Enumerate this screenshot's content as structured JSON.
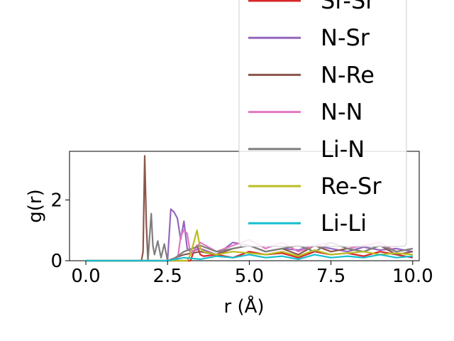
{
  "chart_data": {
    "type": "line",
    "title": "",
    "xlabel": "r (Å)",
    "ylabel": "g(r)",
    "xlim": [
      -0.5,
      10.2
    ],
    "ylim": [
      0,
      3.6
    ],
    "xticks": [
      "0.0",
      "2.5",
      "5.0",
      "7.5",
      "10.0"
    ],
    "xtick_values": [
      0,
      2.5,
      5,
      7.5,
      10
    ],
    "yticks": [
      "0",
      "2"
    ],
    "ytick_values": [
      0,
      2
    ],
    "grid": false,
    "legend_position": "upper-right",
    "series": [
      {
        "name": "Sr-Sr",
        "color": "#d62728",
        "x": [
          0,
          1.7,
          1.8,
          3.2,
          3.3,
          3.4,
          3.5,
          3.6,
          4.0,
          4.5,
          5.0,
          5.5,
          6.0,
          6.5,
          7.0,
          7.5,
          8.0,
          8.5,
          9.0,
          9.5,
          10.0
        ],
        "y": [
          0,
          0,
          0,
          0,
          0.3,
          0.5,
          0.2,
          0.15,
          0.2,
          0.1,
          0.3,
          0.2,
          0.25,
          0.1,
          0.3,
          0.2,
          0.25,
          0.15,
          0.3,
          0.2,
          0.1
        ]
      },
      {
        "name": "N-Sr",
        "color": "#9467bd",
        "x": [
          0,
          2.4,
          2.5,
          2.6,
          2.7,
          2.8,
          2.9,
          3.0,
          3.1,
          3.2,
          3.5,
          4.0,
          4.5,
          5.0,
          5.5,
          6.0,
          6.5,
          7.0,
          7.5,
          8.0,
          8.5,
          9.0,
          9.5,
          10.0
        ],
        "y": [
          0,
          0,
          0,
          1.7,
          1.6,
          1.4,
          0.7,
          1.3,
          0.4,
          0.3,
          0.4,
          0.2,
          0.6,
          0.5,
          0.3,
          0.4,
          0.35,
          0.5,
          0.4,
          0.3,
          0.45,
          0.35,
          0.4,
          0.3
        ]
      },
      {
        "name": "N-Re",
        "color": "#8c564b",
        "x": [
          0,
          1.7,
          1.75,
          1.8,
          1.85,
          1.9,
          2.0,
          2.5,
          3.0,
          3.5,
          4.0,
          4.5,
          5.0,
          5.5,
          6.0,
          6.5,
          7.0,
          7.5,
          8.0,
          8.5,
          9.0,
          9.5,
          10.0
        ],
        "y": [
          0,
          0,
          0.3,
          3.45,
          1.2,
          0,
          0,
          0,
          0.2,
          0.3,
          0.2,
          0.4,
          0.5,
          0.3,
          0.4,
          0.2,
          0.5,
          0.3,
          0.4,
          0.3,
          0.5,
          0.2,
          0.3
        ]
      },
      {
        "name": "N-N",
        "color": "#e377c2",
        "x": [
          0,
          2.8,
          2.9,
          3.0,
          3.1,
          3.2,
          3.5,
          4.0,
          4.5,
          5.0,
          5.5,
          6.0,
          6.5,
          7.0,
          7.5,
          8.0,
          8.5,
          9.0,
          9.5,
          10.0
        ],
        "y": [
          0,
          0,
          0.8,
          1.0,
          0.9,
          0.2,
          0.6,
          0.3,
          0.5,
          0.7,
          0.4,
          0.6,
          0.3,
          0.5,
          0.6,
          0.4,
          0.5,
          0.6,
          0.3,
          0.4
        ]
      },
      {
        "name": "Li-N",
        "color": "#7f7f7f",
        "x": [
          0,
          1.9,
          1.95,
          2.0,
          2.05,
          2.1,
          2.2,
          2.3,
          2.4,
          2.5,
          2.6,
          3.0,
          3.5,
          4.0,
          4.5,
          5.0,
          5.5,
          6.0,
          6.5,
          7.0,
          7.5,
          8.0,
          8.5,
          9.0,
          9.5,
          10.0
        ],
        "y": [
          0,
          0,
          0.8,
          1.55,
          0.5,
          0.2,
          0.65,
          0.1,
          0.55,
          0,
          0,
          0.3,
          0.5,
          0.3,
          0.4,
          0.5,
          0.3,
          0.4,
          0.5,
          0.3,
          0.6,
          0.4,
          0.3,
          0.5,
          0.3,
          0.4
        ]
      },
      {
        "name": "Re-Sr",
        "color": "#bcbd22",
        "x": [
          0,
          3.1,
          3.2,
          3.3,
          3.4,
          3.5,
          3.6,
          4.0,
          4.5,
          5.0,
          5.5,
          6.0,
          6.5,
          7.0,
          7.5,
          8.0,
          8.5,
          9.0,
          9.5,
          10.0
        ],
        "y": [
          0,
          0,
          0.2,
          0.6,
          1.0,
          0.4,
          0.3,
          0.2,
          0.3,
          0.25,
          0.2,
          0.3,
          0.15,
          0.35,
          0.2,
          0.25,
          0.3,
          0.2,
          0.25,
          0.2
        ]
      },
      {
        "name": "Li-Li",
        "color": "#17becf",
        "x": [
          0,
          2.5,
          3.0,
          3.5,
          4.0,
          4.5,
          5.0,
          5.5,
          6.0,
          6.5,
          7.0,
          7.5,
          8.0,
          8.5,
          9.0,
          9.5,
          10.0
        ],
        "y": [
          0,
          0,
          0.1,
          0.05,
          0.15,
          0.1,
          0.2,
          0.1,
          0.15,
          0.05,
          0.2,
          0.1,
          0.15,
          0.1,
          0.2,
          0.1,
          0.15
        ]
      }
    ]
  }
}
